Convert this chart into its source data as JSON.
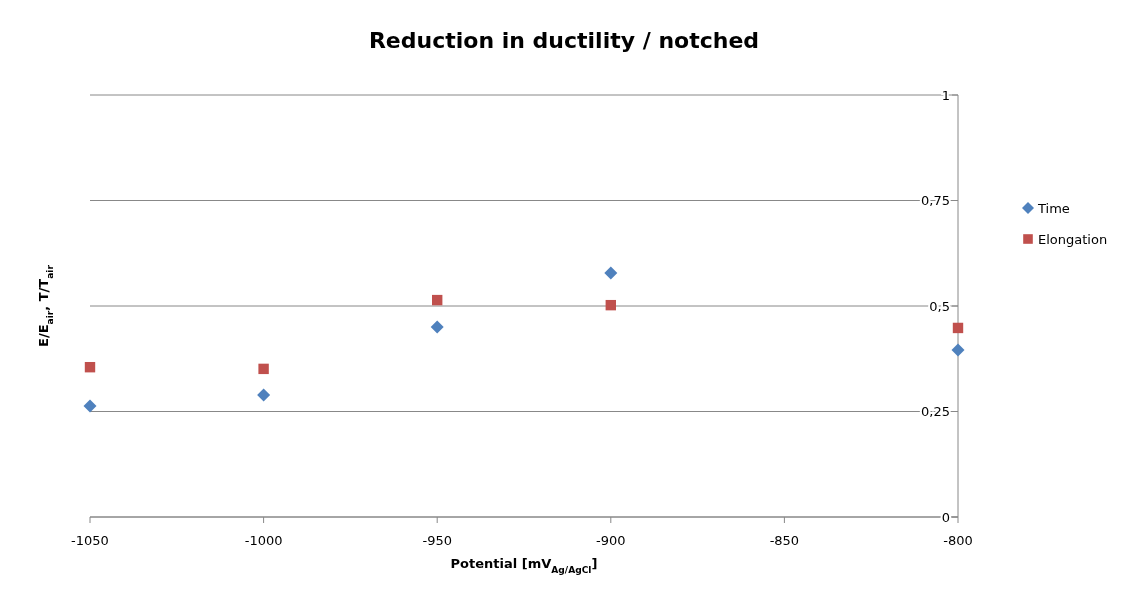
{
  "chart_data": {
    "type": "scatter",
    "title": "Reduction in ductility / notched",
    "xlabel": "Potential [mV$_{Ag/AgCl}$]",
    "ylabel": "E/E$_{air}$, T/T$_{air}$",
    "x": [
      -1050,
      -1000,
      -950,
      -900,
      -800
    ],
    "series": [
      {
        "name": "Time",
        "color": "#4f81bd",
        "marker": "diamond",
        "values": [
          0.263,
          0.289,
          0.45,
          0.578,
          0.396
        ]
      },
      {
        "name": "Elongation",
        "color": "#c0504d",
        "marker": "square",
        "values": [
          0.355,
          0.351,
          0.514,
          0.502,
          0.448
        ]
      }
    ],
    "xlim": [
      -1050,
      -800
    ],
    "xticks": [
      -1050,
      -1000,
      -950,
      -900,
      -850,
      -800
    ],
    "ylim": [
      0,
      1
    ],
    "yticks": [
      {
        "value": 0,
        "label": "0"
      },
      {
        "value": 0.25,
        "label": "0,25"
      },
      {
        "value": 0.5,
        "label": "0,5"
      },
      {
        "value": 0.75,
        "label": "0,75"
      },
      {
        "value": 1,
        "label": "1"
      }
    ],
    "grid": "y",
    "legend": "right"
  }
}
